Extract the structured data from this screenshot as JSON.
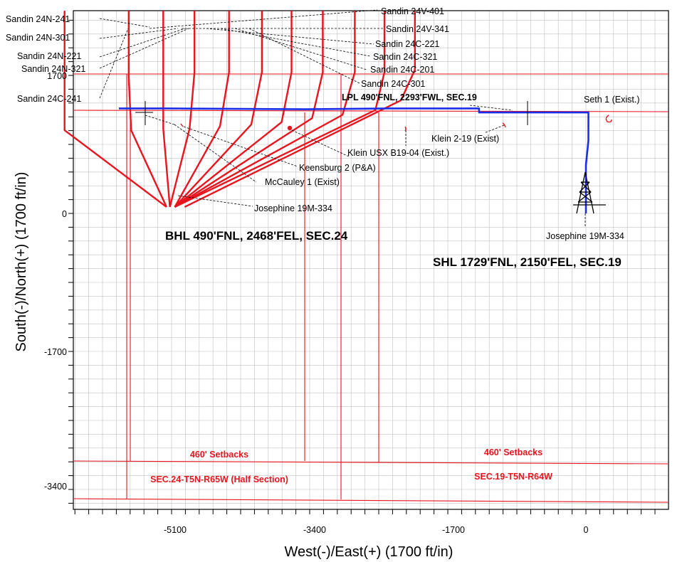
{
  "colors": {
    "grid": "#c0c0c0",
    "lease": "#e8141e",
    "offset_wells": "#e8141e",
    "subject_well": "#1a2ee8",
    "leader": "#000000"
  },
  "chart_data": {
    "type": "scatter",
    "title": "",
    "xlabel": "West(-)/East(+) (1700 ft/in)",
    "ylabel": "South(-)/North(+) (1700 ft/in)",
    "x_ticks": [
      "-5100",
      "-3400",
      "-1700",
      "0"
    ],
    "y_ticks": [
      "1700",
      "0",
      "-1700",
      "-3400"
    ],
    "xlim": [
      -7850,
      1050
    ],
    "ylim": [
      -3990,
      2610
    ],
    "grid": true,
    "subject_well": {
      "name": "Josephine 19M-334",
      "path": [
        [
          0,
          0
        ],
        [
          0,
          250
        ],
        [
          0,
          600
        ],
        [
          30,
          900
        ],
        [
          30,
          1250
        ],
        [
          -600,
          1250
        ],
        [
          -1300,
          1250
        ],
        [
          -1300,
          1300
        ],
        [
          -2400,
          1300
        ],
        [
          -3400,
          1290
        ],
        [
          -5100,
          1300
        ],
        [
          -5680,
          1300
        ]
      ]
    },
    "offset_wells": [
      {
        "name": "Sandin 24C-241",
        "points": [
          [
            -6340,
            2510
          ],
          [
            -6340,
            1680
          ],
          [
            -6340,
            1030
          ],
          [
            -5100,
            80
          ]
        ]
      },
      {
        "name": "Sandin 24N-321",
        "points": [
          [
            -5560,
            2510
          ],
          [
            -5560,
            1680
          ],
          [
            -5530,
            1030
          ],
          [
            -5100,
            80
          ]
        ]
      },
      {
        "name": "Sandin 24N-221",
        "points": [
          [
            -5140,
            2510
          ],
          [
            -5140,
            1750
          ],
          [
            -5140,
            1050
          ],
          [
            -5060,
            80
          ]
        ]
      },
      {
        "name": "Sandin 24N-301",
        "points": [
          [
            -4760,
            2510
          ],
          [
            -4760,
            1750
          ],
          [
            -4820,
            1050
          ],
          [
            -5060,
            80
          ]
        ]
      },
      {
        "name": "Sandin 24N-241",
        "points": [
          [
            -4340,
            2510
          ],
          [
            -4340,
            1750
          ],
          [
            -4450,
            1080
          ],
          [
            -5000,
            80
          ]
        ]
      },
      {
        "name": "Sandin 24V-401",
        "points": [
          [
            -3940,
            2510
          ],
          [
            -3940,
            1750
          ],
          [
            -4070,
            1100
          ],
          [
            -5000,
            80
          ]
        ]
      },
      {
        "name": "Sandin 24V-341",
        "points": [
          [
            -3580,
            2510
          ],
          [
            -3580,
            1750
          ],
          [
            -3700,
            1130
          ],
          [
            -5000,
            80
          ]
        ]
      },
      {
        "name": "Sandin 24C-221",
        "points": [
          [
            -3200,
            2510
          ],
          [
            -3200,
            1750
          ],
          [
            -3330,
            1180
          ],
          [
            -5000,
            80
          ]
        ]
      },
      {
        "name": "Sandin 24C-321",
        "points": [
          [
            -2810,
            2510
          ],
          [
            -2810,
            1750
          ],
          [
            -2960,
            1220
          ],
          [
            -5000,
            80
          ]
        ]
      },
      {
        "name": "Sandin 24C-201",
        "points": [
          [
            -2450,
            2510
          ],
          [
            -2450,
            1750
          ],
          [
            -2560,
            1280
          ],
          [
            -5000,
            80
          ]
        ]
      },
      {
        "name": "Sandin 24C-301",
        "points": [
          [
            -2080,
            2510
          ],
          [
            -2080,
            1780
          ],
          [
            -2250,
            1400
          ],
          [
            -4880,
            80
          ]
        ]
      }
    ],
    "labels": {
      "well_names": [
        "Sandin 24N-241",
        "Sandin 24N-301",
        "Sandin 24N-221",
        "Sandin 24N-321",
        "Sandin 24C-241",
        "Sandin 24V-401",
        "Sandin 24V-341",
        "Sandin 24C-221",
        "Sandin 24C-321",
        "Sandin 24C-201",
        "Sandin 24C-301"
      ],
      "existing_wells": [
        "Seth 1 (Exist.)",
        "Klein 2-19 (Exist)",
        "Klein USX B19-04 (Exist.)",
        "Keensburg 2 (P&A)",
        "McCauley 1 (Exist)",
        "Josephine 19M-334"
      ],
      "lpl": "LPL 490'FNL, 2293'FWL, SEC.19",
      "bhl": "BHL 490'FNL, 2468'FEL, SEC.24",
      "shl": "SHL 1729'FNL, 2150'FEL, SEC.19",
      "rig_label": "Josephine 19M-334",
      "setback_left": "460' Setbacks",
      "setback_right": "460' Setbacks",
      "section_left": "SEC.24-T5N-R65W (Half Section)",
      "section_right": "SEC.19-T5N-R64W"
    }
  }
}
